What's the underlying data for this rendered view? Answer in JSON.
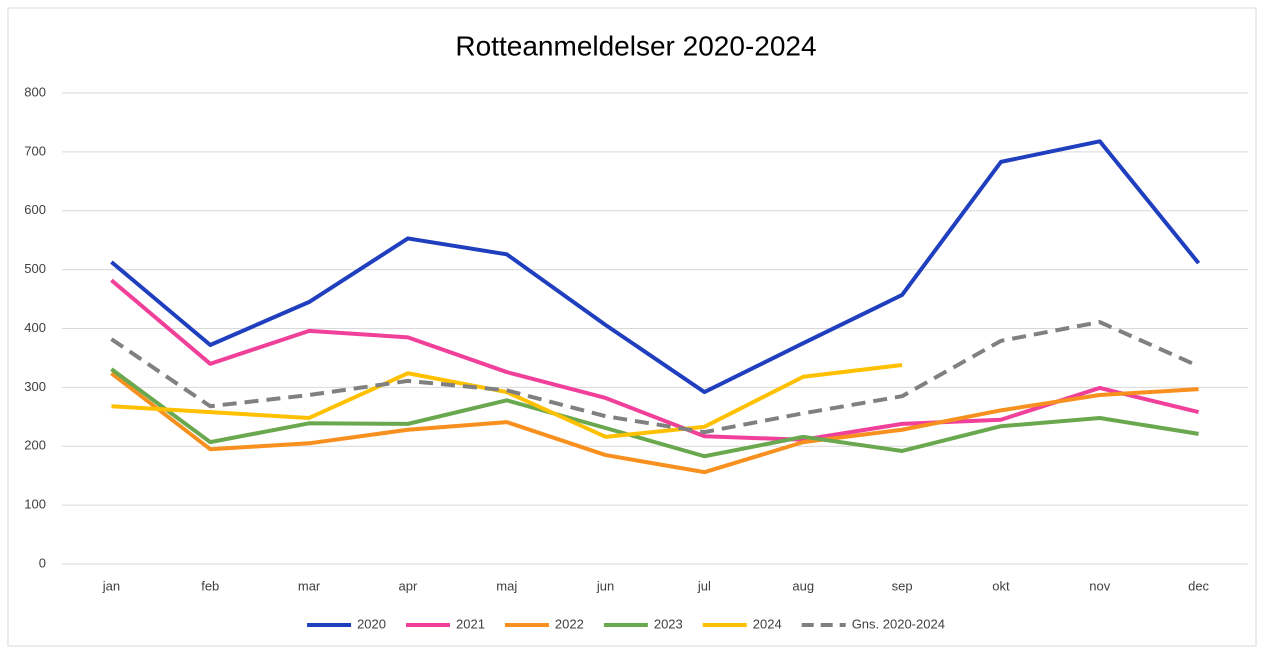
{
  "chart_data": {
    "type": "line",
    "title": "Rotteanmeldelser 2020-2024",
    "categories": [
      "jan",
      "feb",
      "mar",
      "apr",
      "maj",
      "jun",
      "jul",
      "aug",
      "sep",
      "okt",
      "nov",
      "dec"
    ],
    "series": [
      {
        "name": "2020",
        "color": "#1f3fbf",
        "values": [
          513,
          372,
          445,
          553,
          526,
          406,
          292,
          375,
          457,
          683,
          718,
          511
        ]
      },
      {
        "name": "2021",
        "color": "#f0409a",
        "values": [
          482,
          340,
          396,
          385,
          326,
          282,
          217,
          211,
          238,
          245,
          299,
          258
        ]
      },
      {
        "name": "2022",
        "color": "#f7901e",
        "values": [
          324,
          195,
          205,
          228,
          241,
          185,
          156,
          207,
          228,
          261,
          287,
          297
        ]
      },
      {
        "name": "2023",
        "color": "#6aa84f",
        "values": [
          331,
          207,
          239,
          238,
          278,
          231,
          183,
          216,
          192,
          234,
          248,
          221
        ]
      },
      {
        "name": "2024",
        "color": "#ffc000",
        "values": [
          268,
          258,
          248,
          324,
          292,
          216,
          233,
          318,
          338,
          null,
          null,
          null
        ]
      },
      {
        "name": "Gns. 2020-2024",
        "color": "#808080",
        "dashed": true,
        "values": [
          382,
          268,
          287,
          311,
          295,
          251,
          224,
          256,
          285,
          379,
          411,
          336
        ]
      }
    ],
    "ylim": [
      0,
      800
    ],
    "yticks": [
      0,
      100,
      200,
      300,
      400,
      500,
      600,
      700,
      800
    ],
    "grid": true,
    "legend": "bottom"
  }
}
